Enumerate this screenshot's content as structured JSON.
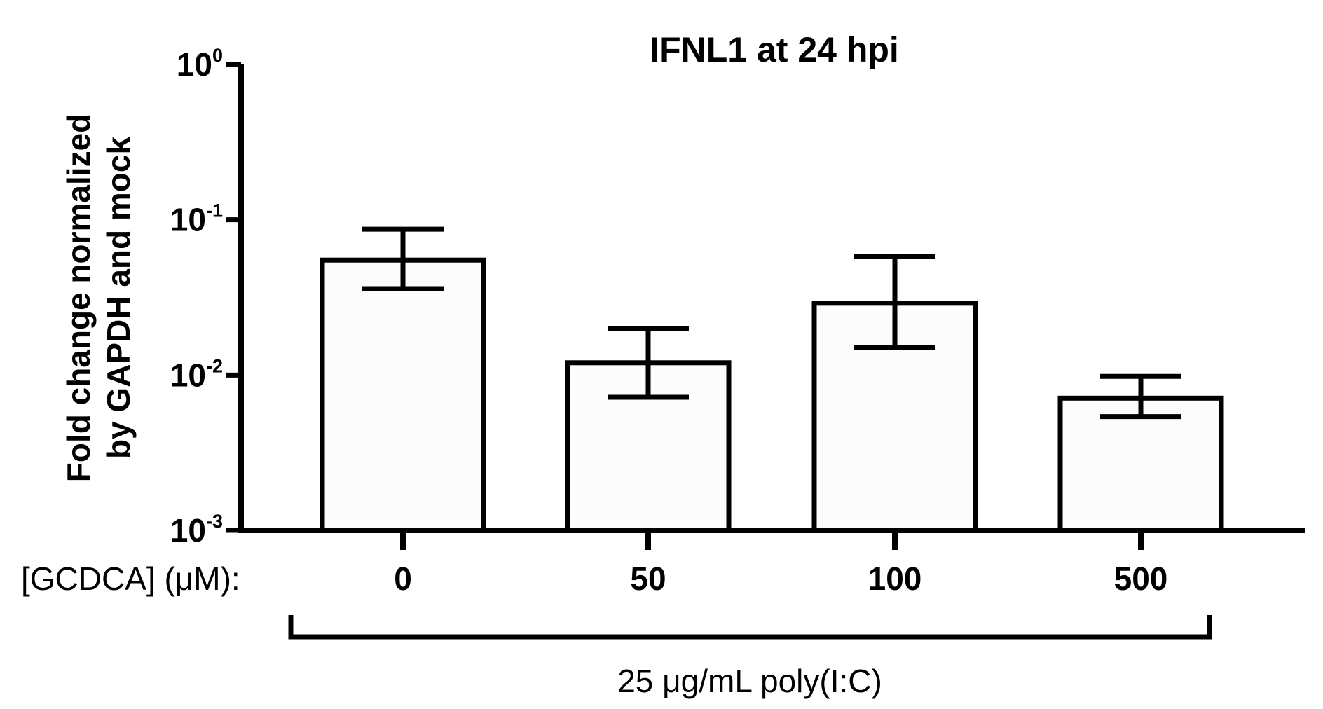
{
  "chart_data": {
    "type": "bar",
    "title": "IFNL1 at 24 hpi",
    "ylabel_lines": [
      "Fold change normalized",
      "by GAPDH and mock"
    ],
    "yscale": "log",
    "ylim": [
      0.001,
      1
    ],
    "y_ticks": [
      {
        "value": 0.001,
        "base": "10",
        "exp": "-3"
      },
      {
        "value": 0.01,
        "base": "10",
        "exp": "-2"
      },
      {
        "value": 0.1,
        "base": "10",
        "exp": "-1"
      },
      {
        "value": 1,
        "base": "10",
        "exp": "0"
      }
    ],
    "x_label": "[GCDCA] (μM):",
    "categories": [
      "0",
      "50",
      "100",
      "500"
    ],
    "values": [
      0.055,
      0.012,
      0.029,
      0.0071
    ],
    "error_low": [
      0.036,
      0.0072,
      0.015,
      0.0054
    ],
    "error_high": [
      0.087,
      0.02,
      0.058,
      0.0098
    ],
    "group_label": "25 μg/mL poly(I:C)",
    "bar_fill": "#fcfcfc",
    "stroke": "#000000",
    "grid": false
  }
}
